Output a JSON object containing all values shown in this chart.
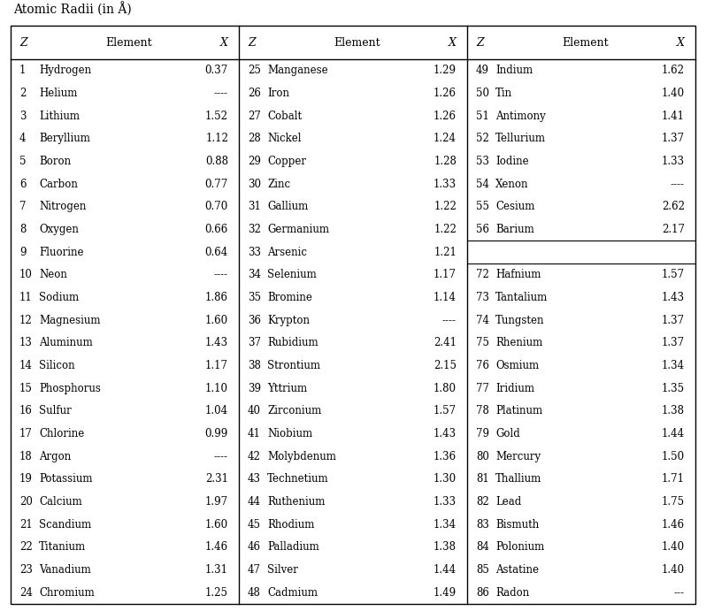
{
  "title": "Atomic Radii (in Å)",
  "col1": [
    [
      1,
      "Hydrogen",
      "0.37"
    ],
    [
      2,
      "Helium",
      "----"
    ],
    [
      3,
      "Lithium",
      "1.52"
    ],
    [
      4,
      "Beryllium",
      "1.12"
    ],
    [
      5,
      "Boron",
      "0.88"
    ],
    [
      6,
      "Carbon",
      "0.77"
    ],
    [
      7,
      "Nitrogen",
      "0.70"
    ],
    [
      8,
      "Oxygen",
      "0.66"
    ],
    [
      9,
      "Fluorine",
      "0.64"
    ],
    [
      10,
      "Neon",
      "----"
    ],
    [
      11,
      "Sodium",
      "1.86"
    ],
    [
      12,
      "Magnesium",
      "1.60"
    ],
    [
      13,
      "Aluminum",
      "1.43"
    ],
    [
      14,
      "Silicon",
      "1.17"
    ],
    [
      15,
      "Phosphorus",
      "1.10"
    ],
    [
      16,
      "Sulfur",
      "1.04"
    ],
    [
      17,
      "Chlorine",
      "0.99"
    ],
    [
      18,
      "Argon",
      "----"
    ],
    [
      19,
      "Potassium",
      "2.31"
    ],
    [
      20,
      "Calcium",
      "1.97"
    ],
    [
      21,
      "Scandium",
      "1.60"
    ],
    [
      22,
      "Titanium",
      "1.46"
    ],
    [
      23,
      "Vanadium",
      "1.31"
    ],
    [
      24,
      "Chromium",
      "1.25"
    ]
  ],
  "col2": [
    [
      25,
      "Manganese",
      "1.29"
    ],
    [
      26,
      "Iron",
      "1.26"
    ],
    [
      27,
      "Cobalt",
      "1.26"
    ],
    [
      28,
      "Nickel",
      "1.24"
    ],
    [
      29,
      "Copper",
      "1.28"
    ],
    [
      30,
      "Zinc",
      "1.33"
    ],
    [
      31,
      "Gallium",
      "1.22"
    ],
    [
      32,
      "Germanium",
      "1.22"
    ],
    [
      33,
      "Arsenic",
      "1.21"
    ],
    [
      34,
      "Selenium",
      "1.17"
    ],
    [
      35,
      "Bromine",
      "1.14"
    ],
    [
      36,
      "Krypton",
      "----"
    ],
    [
      37,
      "Rubidium",
      "2.41"
    ],
    [
      38,
      "Strontium",
      "2.15"
    ],
    [
      39,
      "Yttrium",
      "1.80"
    ],
    [
      40,
      "Zirconium",
      "1.57"
    ],
    [
      41,
      "Niobium",
      "1.43"
    ],
    [
      42,
      "Molybdenum",
      "1.36"
    ],
    [
      43,
      "Technetium",
      "1.30"
    ],
    [
      44,
      "Ruthenium",
      "1.33"
    ],
    [
      45,
      "Rhodium",
      "1.34"
    ],
    [
      46,
      "Palladium",
      "1.38"
    ],
    [
      47,
      "Silver",
      "1.44"
    ],
    [
      48,
      "Cadmium",
      "1.49"
    ]
  ],
  "col3": [
    [
      49,
      "Indium",
      "1.62"
    ],
    [
      50,
      "Tin",
      "1.40"
    ],
    [
      51,
      "Antimony",
      "1.41"
    ],
    [
      52,
      "Tellurium",
      "1.37"
    ],
    [
      53,
      "Iodine",
      "1.33"
    ],
    [
      54,
      "Xenon",
      "----"
    ],
    [
      55,
      "Cesium",
      "2.62"
    ],
    [
      56,
      "Barium",
      "2.17"
    ],
    [
      null,
      "",
      ""
    ],
    [
      72,
      "Hafnium",
      "1.57"
    ],
    [
      73,
      "Tantalium",
      "1.43"
    ],
    [
      74,
      "Tungsten",
      "1.37"
    ],
    [
      75,
      "Rhenium",
      "1.37"
    ],
    [
      76,
      "Osmium",
      "1.34"
    ],
    [
      77,
      "Iridium",
      "1.35"
    ],
    [
      78,
      "Platinum",
      "1.38"
    ],
    [
      79,
      "Gold",
      "1.44"
    ],
    [
      80,
      "Mercury",
      "1.50"
    ],
    [
      81,
      "Thallium",
      "1.71"
    ],
    [
      82,
      "Lead",
      "1.75"
    ],
    [
      83,
      "Bismuth",
      "1.46"
    ],
    [
      84,
      "Polonium",
      "1.40"
    ],
    [
      85,
      "Astatine",
      "1.40"
    ],
    [
      86,
      "Radon",
      "---"
    ]
  ],
  "bg_color": "#ffffff",
  "text_color": "#000000",
  "border_color": "#000000",
  "font_size": 8.5,
  "header_font_size": 9.0,
  "title_font_size": 10.0
}
